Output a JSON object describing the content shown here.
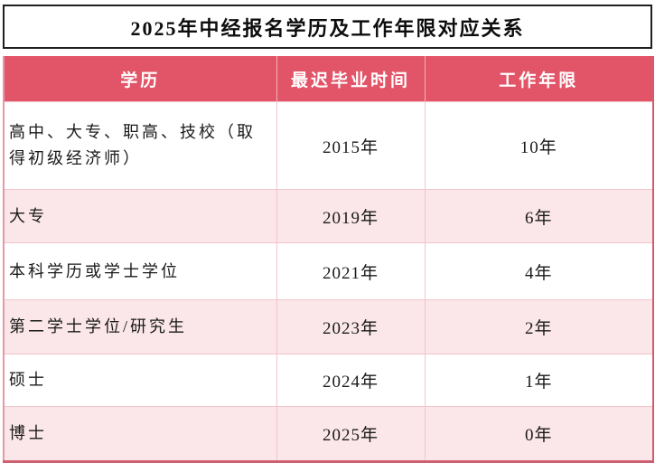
{
  "title": "2025年中经报名学历及工作年限对应关系",
  "colors": {
    "header_bg": "#e25568",
    "alt_row_bg": "#fbe7e9",
    "grid_line": "#f2c5cc",
    "outer_border": "#d05c6e",
    "header_text": "#ffffff",
    "title_border": "#1f1f1f"
  },
  "table": {
    "headers": [
      "学历",
      "最迟毕业时间",
      "工作年限"
    ],
    "rows": [
      {
        "education": "高中、大专、职高、技校（取得初级经济师）",
        "graduation": "2015年",
        "years": "10年"
      },
      {
        "education": "大专",
        "graduation": "2019年",
        "years": "6年"
      },
      {
        "education": "本科学历或学士学位",
        "graduation": "2021年",
        "years": "4年"
      },
      {
        "education": "第二学士学位/研究生",
        "graduation": "2023年",
        "years": "2年"
      },
      {
        "education": "硕士",
        "graduation": "2024年",
        "years": "1年"
      },
      {
        "education": "博士",
        "graduation": "2025年",
        "years": "0年"
      }
    ]
  },
  "chart_data": {
    "type": "table",
    "title": "2025年中经报名学历及工作年限对应关系",
    "columns": [
      "学历",
      "最迟毕业时间",
      "工作年限"
    ],
    "rows": [
      [
        "高中、大专、职高、技校（取得初级经济师）",
        "2015年",
        "10年"
      ],
      [
        "大专",
        "2019年",
        "6年"
      ],
      [
        "本科学历或学士学位",
        "2021年",
        "4年"
      ],
      [
        "第二学士学位/研究生",
        "2023年",
        "2年"
      ],
      [
        "硕士",
        "2024年",
        "1年"
      ],
      [
        "博士",
        "2025年",
        "0年"
      ]
    ]
  }
}
